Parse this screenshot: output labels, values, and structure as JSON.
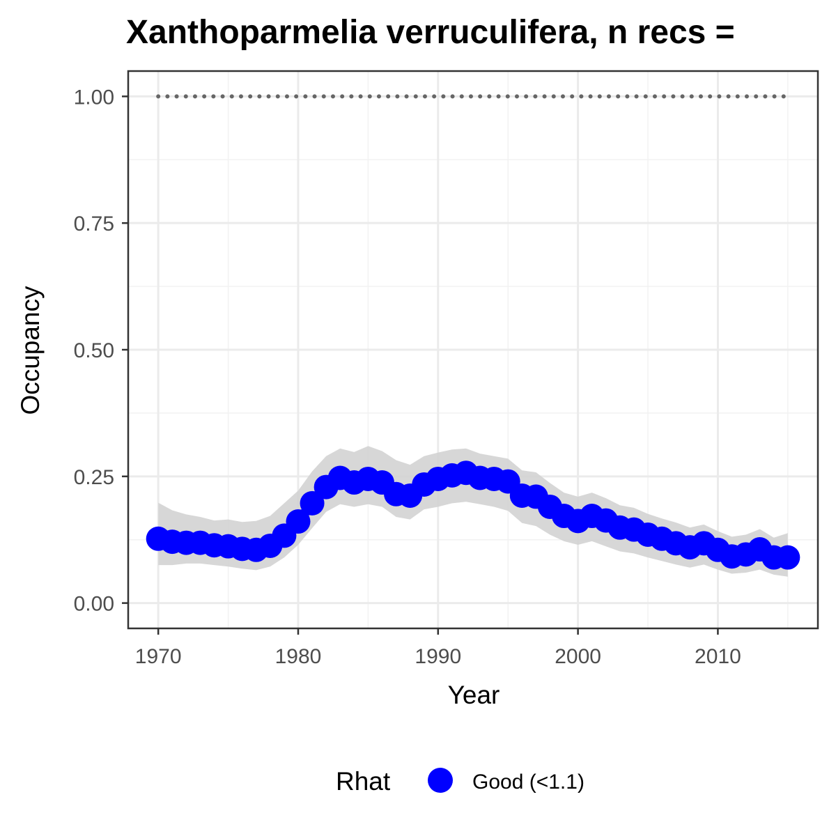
{
  "chart_data": {
    "type": "line",
    "title": "Xanthoparmelia verruculifera, n recs =",
    "xlabel": "Year",
    "ylabel": "Occupancy",
    "xlim": [
      1967.85,
      2017.15
    ],
    "ylim": [
      -0.05,
      1.05
    ],
    "x_ticks": [
      "1970",
      "1980",
      "1990",
      "2000",
      "2010"
    ],
    "y_ticks": [
      "0.00",
      "0.25",
      "0.50",
      "0.75",
      "1.00"
    ],
    "grid": true,
    "legend": {
      "title": "Rhat",
      "position": "bottom",
      "entries": [
        {
          "label": "Good (<1.1)",
          "color": "#0000ff"
        }
      ]
    },
    "colors": {
      "points": "#0000ff",
      "ribbon": "#d3d3d3",
      "reference_line": "#666666"
    },
    "reference_line": {
      "y": 1.0,
      "x_from": 1970,
      "x_to": 2015,
      "style": "dotted"
    },
    "series": [
      {
        "name": "Good (<1.1)",
        "x": [
          1970,
          1971,
          1972,
          1973,
          1974,
          1975,
          1976,
          1977,
          1978,
          1979,
          1980,
          1981,
          1982,
          1983,
          1984,
          1985,
          1986,
          1987,
          1988,
          1989,
          1990,
          1991,
          1992,
          1993,
          1994,
          1995,
          1996,
          1997,
          1998,
          1999,
          2000,
          2001,
          2002,
          2003,
          2004,
          2005,
          2006,
          2007,
          2008,
          2009,
          2010,
          2011,
          2012,
          2013,
          2014,
          2015
        ],
        "y": [
          0.127,
          0.121,
          0.119,
          0.119,
          0.114,
          0.112,
          0.107,
          0.105,
          0.113,
          0.133,
          0.161,
          0.197,
          0.229,
          0.247,
          0.238,
          0.245,
          0.238,
          0.215,
          0.212,
          0.234,
          0.245,
          0.252,
          0.257,
          0.247,
          0.245,
          0.24,
          0.212,
          0.21,
          0.19,
          0.172,
          0.162,
          0.172,
          0.163,
          0.149,
          0.145,
          0.135,
          0.127,
          0.118,
          0.11,
          0.118,
          0.105,
          0.092,
          0.096,
          0.106,
          0.09,
          0.09
        ],
        "lower": [
          0.075,
          0.075,
          0.078,
          0.078,
          0.075,
          0.072,
          0.068,
          0.065,
          0.072,
          0.09,
          0.115,
          0.148,
          0.18,
          0.195,
          0.19,
          0.195,
          0.19,
          0.17,
          0.165,
          0.185,
          0.19,
          0.197,
          0.2,
          0.195,
          0.19,
          0.182,
          0.158,
          0.152,
          0.135,
          0.122,
          0.115,
          0.122,
          0.112,
          0.102,
          0.098,
          0.09,
          0.083,
          0.076,
          0.07,
          0.076,
          0.066,
          0.058,
          0.06,
          0.066,
          0.056,
          0.052
        ],
        "upper": [
          0.198,
          0.183,
          0.175,
          0.17,
          0.163,
          0.165,
          0.16,
          0.162,
          0.172,
          0.197,
          0.222,
          0.26,
          0.29,
          0.305,
          0.298,
          0.31,
          0.3,
          0.282,
          0.273,
          0.29,
          0.297,
          0.303,
          0.305,
          0.295,
          0.29,
          0.285,
          0.262,
          0.258,
          0.237,
          0.218,
          0.21,
          0.218,
          0.207,
          0.193,
          0.188,
          0.176,
          0.167,
          0.159,
          0.149,
          0.155,
          0.142,
          0.131,
          0.135,
          0.146,
          0.129,
          0.138
        ]
      }
    ]
  }
}
